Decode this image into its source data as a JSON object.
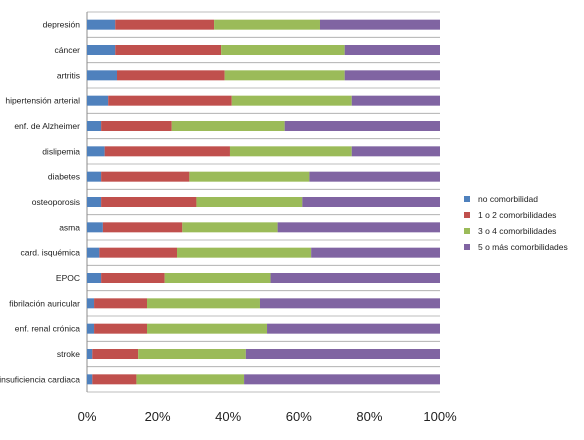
{
  "chart_data": {
    "type": "bar",
    "orientation": "horizontal",
    "stacking": "percent",
    "categories": [
      "depresión",
      "cáncer",
      "artritis",
      "hipertensión arterial",
      "enf. de Alzheimer",
      "dislipemia",
      "diabetes",
      "osteoporosis",
      "asma",
      "card. isquémica",
      "EPOC",
      "fibrilación auricular",
      "enf. renal crónica",
      "stroke",
      "insuficiencia cardiaca"
    ],
    "series": [
      {
        "name": "no comorbilidad",
        "color": "#4f81bd",
        "values": [
          8,
          8,
          8.5,
          6,
          4,
          5,
          4,
          4,
          4.5,
          3.5,
          4,
          2,
          2,
          1.5,
          1.5
        ]
      },
      {
        "name": "1 o 2 comorbilidades",
        "color": "#c0504d",
        "values": [
          28,
          30,
          30.5,
          35,
          20,
          35.5,
          25,
          27,
          22.5,
          22,
          18,
          15,
          15,
          13,
          12.5
        ]
      },
      {
        "name": "3 o 4 comorbilidades",
        "color": "#9bbb59",
        "values": [
          30,
          35,
          34,
          34,
          32,
          34.5,
          34,
          30,
          27,
          38,
          30,
          32,
          34,
          30.5,
          30.5
        ]
      },
      {
        "name": "5 o más comorbilidades",
        "color": "#8064a2",
        "values": [
          34,
          27,
          27,
          25,
          44,
          25,
          37,
          39,
          46,
          36.5,
          48,
          51,
          49,
          55,
          55.5
        ]
      }
    ],
    "xlim": [
      0,
      100
    ],
    "x_ticks": [
      "0%",
      "20%",
      "40%",
      "60%",
      "80%",
      "100%"
    ],
    "grid": true,
    "legend_position": "right"
  }
}
